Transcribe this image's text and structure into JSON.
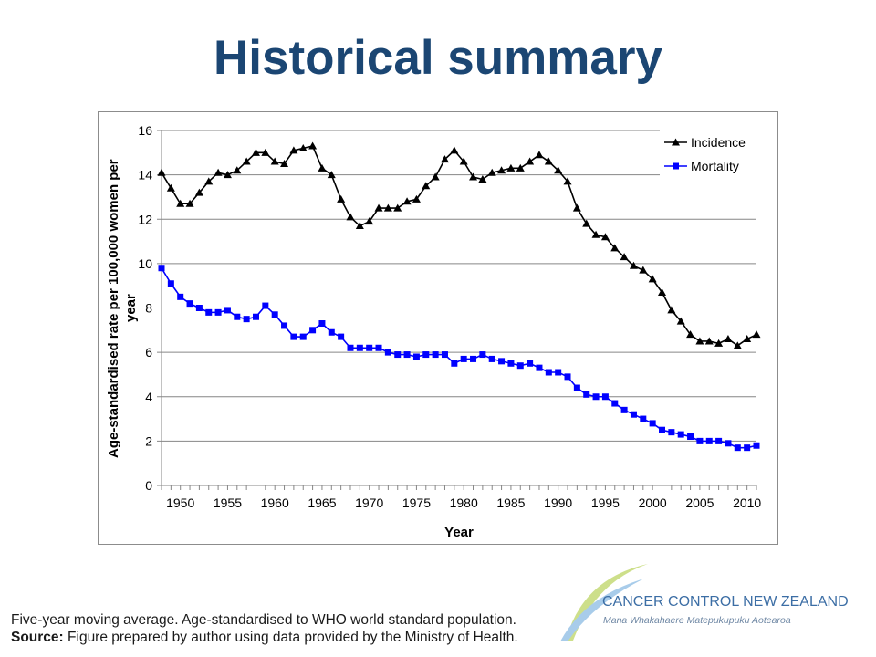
{
  "slide": {
    "title": "Historical summary",
    "title_color": "#1B4673"
  },
  "chart_data": {
    "type": "line",
    "xlabel": "Year",
    "ylabel": "Age-standardised rate per 100,000 women per year",
    "ylim": [
      0,
      16
    ],
    "y_ticks": [
      0,
      2,
      4,
      6,
      8,
      10,
      12,
      14,
      16
    ],
    "x_ticks": [
      1950,
      1955,
      1960,
      1965,
      1970,
      1975,
      1980,
      1985,
      1990,
      1995,
      2000,
      2005,
      2010
    ],
    "x": [
      1948,
      1949,
      1950,
      1951,
      1952,
      1953,
      1954,
      1955,
      1956,
      1957,
      1958,
      1959,
      1960,
      1961,
      1962,
      1963,
      1964,
      1965,
      1966,
      1967,
      1968,
      1969,
      1970,
      1971,
      1972,
      1973,
      1974,
      1975,
      1976,
      1977,
      1978,
      1979,
      1980,
      1981,
      1982,
      1983,
      1984,
      1985,
      1986,
      1987,
      1988,
      1989,
      1990,
      1991,
      1992,
      1993,
      1994,
      1995,
      1996,
      1997,
      1998,
      1999,
      2000,
      2001,
      2002,
      2003,
      2004,
      2005,
      2006,
      2007,
      2008,
      2009,
      2010,
      2011
    ],
    "series": [
      {
        "name": "Incidence",
        "color": "#000000",
        "marker": "triangle",
        "values": [
          14.1,
          13.4,
          12.7,
          12.7,
          13.2,
          13.7,
          14.1,
          14.0,
          14.2,
          14.6,
          15.0,
          15.0,
          14.6,
          14.5,
          15.1,
          15.2,
          15.3,
          14.3,
          14.0,
          12.9,
          12.1,
          11.7,
          11.9,
          12.5,
          12.5,
          12.5,
          12.8,
          12.9,
          13.5,
          13.9,
          14.7,
          15.1,
          14.6,
          13.9,
          13.8,
          14.1,
          14.2,
          14.3,
          14.3,
          14.6,
          14.9,
          14.6,
          14.2,
          13.7,
          12.5,
          11.8,
          11.3,
          11.2,
          10.7,
          10.3,
          9.9,
          9.7,
          9.3,
          8.7,
          7.9,
          7.4,
          6.8,
          6.5,
          6.5,
          6.4,
          6.6,
          6.3,
          6.6,
          6.8
        ]
      },
      {
        "name": "Mortality",
        "color": "#0000FF",
        "marker": "square",
        "values": [
          9.8,
          9.1,
          8.5,
          8.2,
          8.0,
          7.8,
          7.8,
          7.9,
          7.6,
          7.5,
          7.6,
          8.1,
          7.7,
          7.2,
          6.7,
          6.7,
          7.0,
          7.3,
          6.9,
          6.7,
          6.2,
          6.2,
          6.2,
          6.2,
          6.0,
          5.9,
          5.9,
          5.8,
          5.9,
          5.9,
          5.9,
          5.5,
          5.7,
          5.7,
          5.9,
          5.7,
          5.6,
          5.5,
          5.4,
          5.5,
          5.3,
          5.1,
          5.1,
          4.9,
          4.4,
          4.1,
          4.0,
          4.0,
          3.7,
          3.4,
          3.2,
          3.0,
          2.8,
          2.5,
          2.4,
          2.3,
          2.2,
          2.0,
          2.0,
          2.0,
          1.9,
          1.7,
          1.7,
          1.8
        ]
      }
    ],
    "grid": "horizontal",
    "legend_position": "top-right"
  },
  "footnote": {
    "method": "Five-year moving average. Age-standardised to WHO world standard population.",
    "source_label": "Source:",
    "source_text": "Figure prepared by author using data provided by the Ministry of Health."
  },
  "logo": {
    "name": "CANCER CONTROL NEW ZEALAND",
    "tagline": "Mana Whakahaere Matepukupuku Aotearoa",
    "text_color": "#3C6EA5",
    "swoosh_colors": [
      "#CDDF8A",
      "#A8CCEA"
    ]
  }
}
